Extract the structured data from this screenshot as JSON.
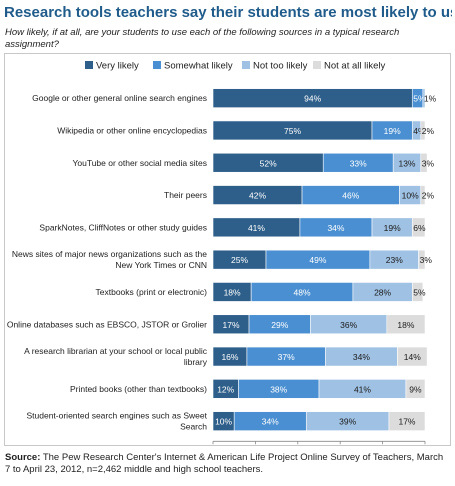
{
  "title": "Research tools teachers say their students are most likely to use",
  "subtitle": "How likely, if at all, are your students to use each of the following sources in a typical research assignment?",
  "source": {
    "label": "Source:",
    "text": "The Pew Research Center's Internet & American Life Project Online Survey of Teachers, March 7 to April 23, 2012, n=2,462 middle and high school teachers."
  },
  "chart_data": {
    "type": "bar",
    "orientation": "horizontal",
    "stacked": true,
    "categories": [
      [
        "Google or other general online search engines"
      ],
      [
        "Wikipedia or other online encyclopedias"
      ],
      [
        "YouTube or other social media sites"
      ],
      [
        "Their peers"
      ],
      [
        "SparkNotes, CliffNotes or other study guides"
      ],
      [
        "News sites of major news organizations such as the",
        "New York Times or CNN"
      ],
      [
        "Textbooks (print or electronic)"
      ],
      [
        "Online databases such as EBSCO, JSTOR or Grolier"
      ],
      [
        "A research librarian at your school or local public",
        "library"
      ],
      [
        "Printed books (other than textbooks)"
      ],
      [
        "Student-oriented search engines such as Sweet",
        "Search"
      ]
    ],
    "series": [
      {
        "name": "Very likely",
        "color": "#2e5f8a",
        "values": [
          94,
          75,
          52,
          42,
          41,
          25,
          18,
          17,
          16,
          12,
          10
        ]
      },
      {
        "name": "Somewhat likely",
        "color": "#4a8fd1",
        "values": [
          5,
          19,
          33,
          46,
          34,
          49,
          48,
          29,
          37,
          38,
          34
        ]
      },
      {
        "name": "Not too likely",
        "color": "#9fc1e3",
        "values": [
          1,
          4,
          13,
          10,
          19,
          23,
          28,
          36,
          34,
          41,
          39
        ]
      },
      {
        "name": "Not at all likely",
        "color": "#dcdcdc",
        "values": [
          0,
          2,
          3,
          2,
          6,
          3,
          5,
          18,
          14,
          9,
          17
        ]
      }
    ],
    "data_labels": [
      [
        "94%",
        "5%",
        "1%",
        ""
      ],
      [
        "75%",
        "19%",
        "4%",
        "2%"
      ],
      [
        "52%",
        "33%",
        "13%",
        "3%"
      ],
      [
        "42%",
        "46%",
        "10%",
        "2%"
      ],
      [
        "41%",
        "34%",
        "19%",
        "6%"
      ],
      [
        "25%",
        "49%",
        "23%",
        "3%"
      ],
      [
        "18%",
        "48%",
        "28%",
        "5%"
      ],
      [
        "17%",
        "29%",
        "36%",
        "18%"
      ],
      [
        "16%",
        "37%",
        "34%",
        "14%"
      ],
      [
        "12%",
        "38%",
        "41%",
        "9%"
      ],
      [
        "10%",
        "34%",
        "39%",
        "17%"
      ]
    ],
    "xlim": [
      0,
      100
    ],
    "xticks": [
      "0%",
      "20%",
      "40%",
      "60%",
      "80%",
      "100%"
    ],
    "legend": "top",
    "grid": false
  }
}
